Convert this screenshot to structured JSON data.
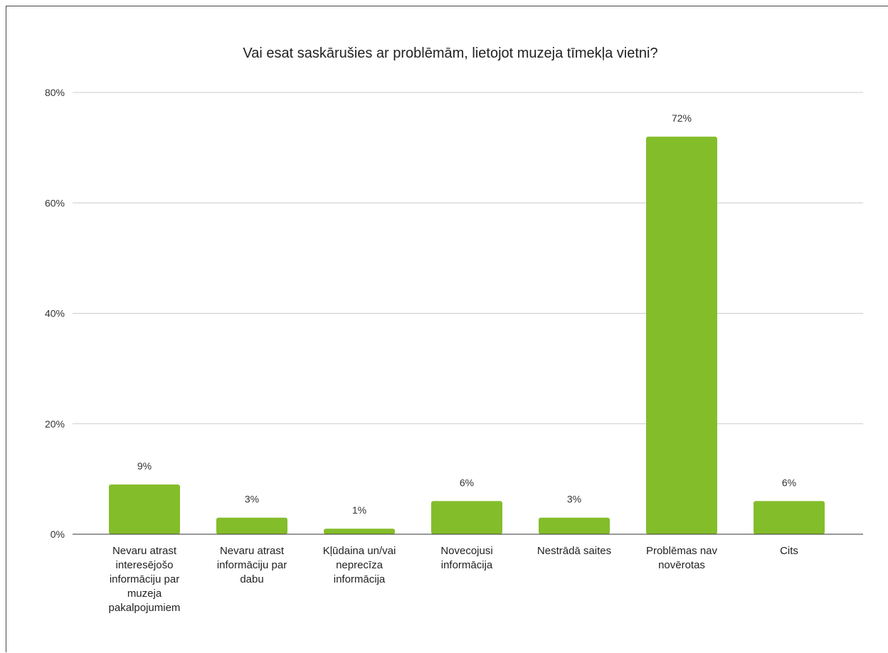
{
  "chart_data": {
    "type": "bar",
    "title": "Vai esat saskārušies ar problēmām, lietojot muzeja tīmekļa vietni?",
    "xlabel": "",
    "ylabel": "",
    "ylim": [
      0,
      80
    ],
    "y_ticks": [
      "0%",
      "20%",
      "40%",
      "60%",
      "80%"
    ],
    "grid": true,
    "legend": "none",
    "bar_color": "#84bd2a",
    "categories": [
      "Nevaru atrast interesējošo informāciju par muzeja pakalpojumiem",
      "Nevaru atrast informāciju par dabu",
      "Kļūdaina un/vai neprecīza informācija",
      "Novecojusi informācija",
      "Nestrādā saites",
      "Problēmas nav novērotas",
      "Cits"
    ],
    "category_lines": [
      [
        "Nevaru atrast",
        "interesējošo",
        "informāciju par",
        "muzeja",
        "pakalpojumiem"
      ],
      [
        "Nevaru atrast",
        "informāciju par",
        "dabu"
      ],
      [
        "Kļūdaina un/vai",
        "neprecīza",
        "informācija"
      ],
      [
        "Novecojusi",
        "informācija"
      ],
      [
        "Nestrādā saites"
      ],
      [
        "Problēmas nav",
        "novērotas"
      ],
      [
        "Cits"
      ]
    ],
    "values": [
      9,
      3,
      1,
      6,
      3,
      72,
      6
    ],
    "data_labels": [
      "9%",
      "3%",
      "1%",
      "6%",
      "3%",
      "72%",
      "6%"
    ]
  }
}
